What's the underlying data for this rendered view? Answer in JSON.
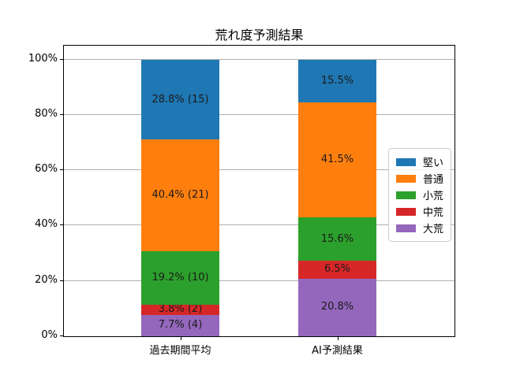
{
  "chart_data": {
    "type": "bar",
    "stacked": true,
    "title": "荒れ度予測結果",
    "categories": [
      "過去期間平均",
      "AI予測結果"
    ],
    "series": [
      {
        "name": "堅い",
        "color": "#1f77b4",
        "values": [
          28.8,
          15.5
        ],
        "bar_labels": [
          "28.8% (15)",
          "15.5%"
        ]
      },
      {
        "name": "普通",
        "color": "#ff7f0e",
        "values": [
          40.4,
          41.5
        ],
        "bar_labels": [
          "40.4% (21)",
          "41.5%"
        ]
      },
      {
        "name": "小荒",
        "color": "#2ca02c",
        "values": [
          19.2,
          15.6
        ],
        "bar_labels": [
          "19.2% (10)",
          "15.6%"
        ]
      },
      {
        "name": "中荒",
        "color": "#d62728",
        "values": [
          3.8,
          6.5
        ],
        "bar_labels": [
          "3.8% (2)",
          "6.5%"
        ]
      },
      {
        "name": "大荒",
        "color": "#9467bd",
        "values": [
          7.7,
          20.8
        ],
        "bar_labels": [
          "7.7% (4)",
          "20.8%"
        ]
      }
    ],
    "yticks": {
      "values": [
        0,
        20,
        40,
        60,
        80,
        100
      ],
      "labels": [
        "0%",
        "20%",
        "40%",
        "60%",
        "80%",
        "100%"
      ]
    },
    "ylim": [
      0,
      105
    ],
    "grid": true,
    "grid_color": "#b0b0b0",
    "legend_position": "center-right-inside",
    "legend_items": [
      "堅い",
      "普通",
      "小荒",
      "中荒",
      "大荒"
    ]
  }
}
